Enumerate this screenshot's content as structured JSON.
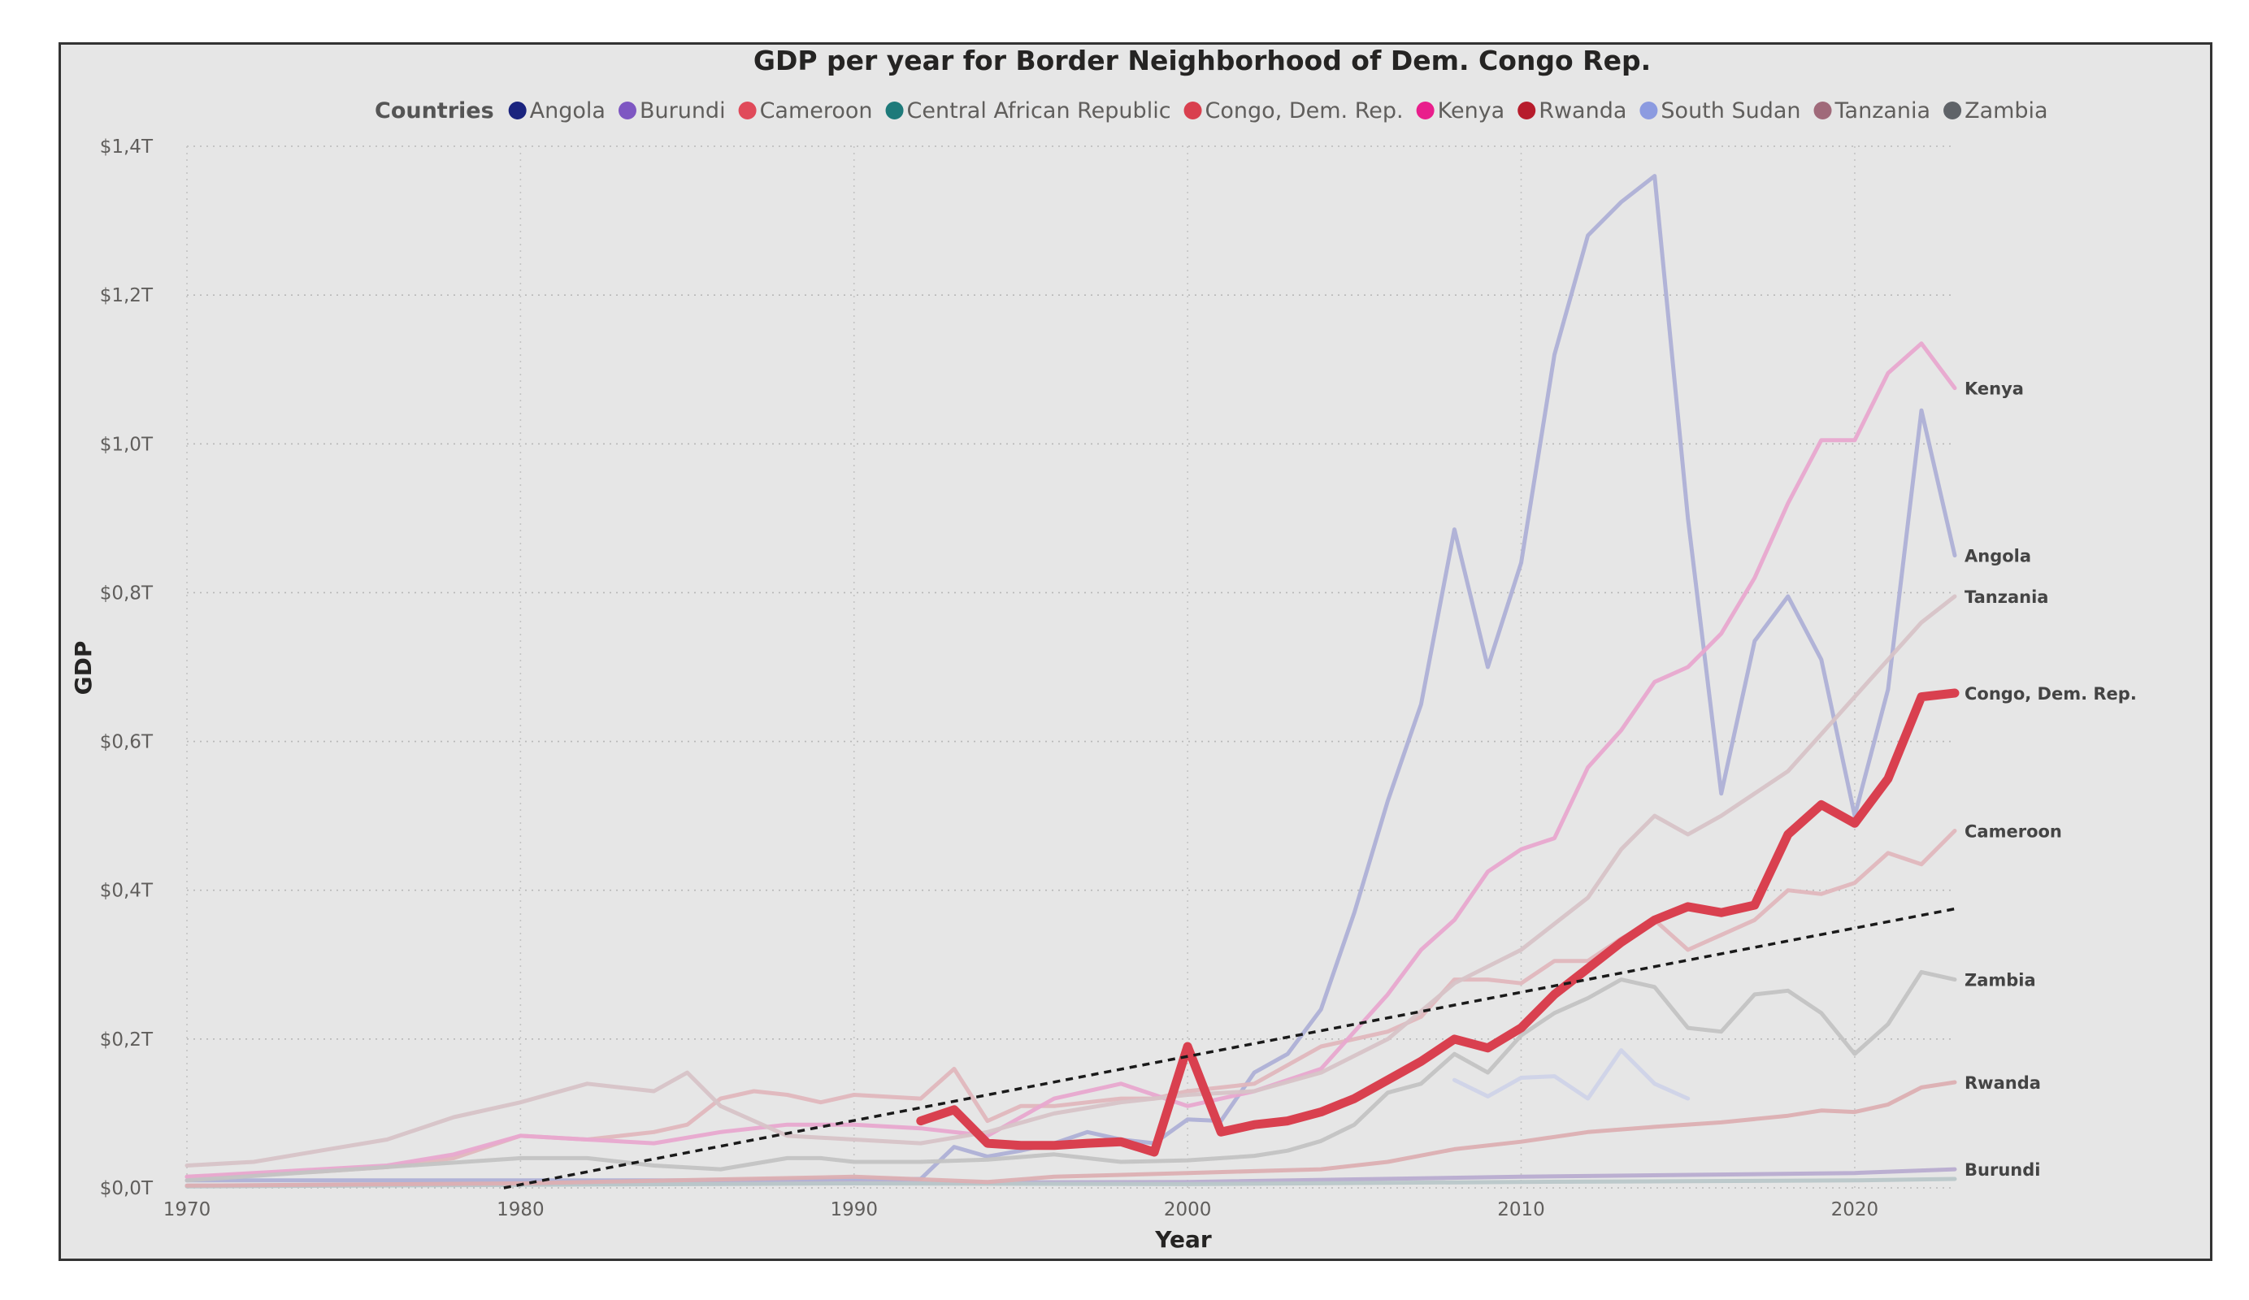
{
  "chart_data": {
    "type": "line",
    "title": "GDP per year for Border Neighborhood of Dem. Congo Rep.",
    "xlabel": "Year",
    "ylabel": "GDP",
    "xlim": [
      1970,
      2023
    ],
    "ylim": [
      0,
      1.4
    ],
    "x_ticks": [
      "1970",
      "1980",
      "1990",
      "2000",
      "2010",
      "2020"
    ],
    "y_ticks": [
      "$0,0T",
      "$0,2T",
      "$0,4T",
      "$0,6T",
      "$0,8T",
      "$1,0T",
      "$1,2T",
      "$1,4T"
    ],
    "grid": true,
    "legend_title": "Countries",
    "legend_position": "top",
    "highlighted_series": "Congo, Dem. Rep.",
    "trend_line": {
      "style": "dashed",
      "points": [
        [
          1979.5,
          0.0
        ],
        [
          2023,
          0.375
        ]
      ]
    },
    "series": [
      {
        "name": "Angola",
        "color": "#1a237e",
        "display_color": "#aeb0d6",
        "end_label": "Angola",
        "x": [
          1970,
          1975,
          1980,
          1985,
          1990,
          1992,
          1993,
          1994,
          1995,
          1996,
          1997,
          1998,
          1999,
          2000,
          2001,
          2002,
          2003,
          2004,
          2005,
          2006,
          2007,
          2008,
          2009,
          2010,
          2011,
          2012,
          2013,
          2014,
          2015,
          2016,
          2017,
          2018,
          2019,
          2020,
          2021,
          2022,
          2023
        ],
        "values": [
          0.01,
          0.01,
          0.01,
          0.01,
          0.012,
          0.012,
          0.055,
          0.042,
          0.05,
          0.06,
          0.075,
          0.065,
          0.06,
          0.092,
          0.09,
          0.155,
          0.18,
          0.24,
          0.37,
          0.52,
          0.65,
          0.885,
          0.7,
          0.84,
          1.12,
          1.28,
          1.325,
          1.36,
          0.9,
          0.53,
          0.735,
          0.795,
          0.71,
          0.5,
          0.67,
          1.045,
          0.85
        ]
      },
      {
        "name": "Burundi",
        "color": "#7e57c2",
        "display_color": "#b8acd0",
        "end_label": "Burundi",
        "x": [
          1970,
          1980,
          1990,
          2000,
          2010,
          2020,
          2023
        ],
        "values": [
          0.003,
          0.005,
          0.007,
          0.008,
          0.015,
          0.02,
          0.025
        ]
      },
      {
        "name": "Cameroon",
        "color": "#e04a5a",
        "display_color": "#e0b7bd",
        "end_label": "Cameroon",
        "x": [
          1970,
          1972,
          1974,
          1976,
          1978,
          1980,
          1982,
          1984,
          1985,
          1986,
          1987,
          1988,
          1989,
          1990,
          1992,
          1993,
          1994,
          1995,
          1996,
          1997,
          1998,
          1999,
          2000,
          2002,
          2004,
          2006,
          2007,
          2008,
          2009,
          2010,
          2011,
          2012,
          2013,
          2014,
          2015,
          2016,
          2017,
          2018,
          2019,
          2020,
          2021,
          2022,
          2023
        ],
        "values": [
          0.015,
          0.018,
          0.022,
          0.028,
          0.04,
          0.07,
          0.065,
          0.075,
          0.085,
          0.12,
          0.13,
          0.125,
          0.115,
          0.125,
          0.12,
          0.16,
          0.09,
          0.11,
          0.11,
          0.115,
          0.12,
          0.12,
          0.13,
          0.14,
          0.19,
          0.21,
          0.23,
          0.28,
          0.28,
          0.275,
          0.305,
          0.305,
          0.335,
          0.36,
          0.32,
          0.34,
          0.36,
          0.4,
          0.395,
          0.41,
          0.45,
          0.435,
          0.48
        ]
      },
      {
        "name": "Central African Republic",
        "color": "#1e7a7a",
        "display_color": "#b9c7c9",
        "end_label": "",
        "x": [
          1970,
          1980,
          1990,
          2000,
          2010,
          2020,
          2023
        ],
        "values": [
          0.002,
          0.004,
          0.006,
          0.005,
          0.008,
          0.01,
          0.012
        ]
      },
      {
        "name": "Congo, Dem. Rep.",
        "color": "#d9404f",
        "display_color": "#d9404f",
        "end_label": "Congo, Dem. Rep.",
        "x": [
          1992,
          1993,
          1994,
          1995,
          1996,
          1997,
          1998,
          1999,
          2000,
          2001,
          2002,
          2003,
          2004,
          2005,
          2006,
          2007,
          2008,
          2009,
          2010,
          2011,
          2012,
          2013,
          2014,
          2015,
          2016,
          2017,
          2018,
          2019,
          2020,
          2021,
          2022,
          2023
        ],
        "values": [
          0.09,
          0.105,
          0.06,
          0.057,
          0.057,
          0.06,
          0.062,
          0.048,
          0.19,
          0.075,
          0.085,
          0.09,
          0.102,
          0.12,
          0.145,
          0.17,
          0.2,
          0.188,
          0.215,
          0.26,
          0.295,
          0.33,
          0.36,
          0.378,
          0.37,
          0.38,
          0.475,
          0.515,
          0.49,
          0.55,
          0.66,
          0.665
        ]
      },
      {
        "name": "Kenya",
        "color": "#e91e8c",
        "display_color": "#e8a8cf",
        "end_label": "Kenya",
        "x": [
          1970,
          1972,
          1974,
          1976,
          1978,
          1980,
          1982,
          1984,
          1986,
          1988,
          1990,
          1992,
          1994,
          1996,
          1998,
          2000,
          2002,
          2004,
          2006,
          2007,
          2008,
          2009,
          2010,
          2011,
          2012,
          2013,
          2014,
          2015,
          2016,
          2017,
          2018,
          2019,
          2020,
          2021,
          2022,
          2023
        ],
        "values": [
          0.015,
          0.02,
          0.025,
          0.03,
          0.045,
          0.07,
          0.065,
          0.06,
          0.075,
          0.085,
          0.085,
          0.08,
          0.07,
          0.12,
          0.14,
          0.11,
          0.13,
          0.16,
          0.26,
          0.32,
          0.36,
          0.425,
          0.455,
          0.47,
          0.565,
          0.615,
          0.68,
          0.7,
          0.745,
          0.82,
          0.92,
          1.005,
          1.005,
          1.095,
          1.135,
          1.075
        ]
      },
      {
        "name": "Rwanda",
        "color": "#b71c2c",
        "display_color": "#dcafb2",
        "end_label": "Rwanda",
        "x": [
          1970,
          1980,
          1990,
          1994,
          1996,
          2000,
          2004,
          2006,
          2008,
          2010,
          2012,
          2014,
          2016,
          2018,
          2019,
          2020,
          2021,
          2022,
          2023
        ],
        "values": [
          0.003,
          0.006,
          0.015,
          0.008,
          0.015,
          0.02,
          0.025,
          0.035,
          0.052,
          0.062,
          0.075,
          0.082,
          0.088,
          0.097,
          0.104,
          0.102,
          0.112,
          0.135,
          0.142
        ]
      },
      {
        "name": "South Sudan",
        "color": "#8c9be0",
        "display_color": "#cfd3e8",
        "end_label": "",
        "x": [
          2008,
          2009,
          2010,
          2011,
          2012,
          2013,
          2014,
          2015
        ],
        "values": [
          0.145,
          0.123,
          0.148,
          0.15,
          0.12,
          0.185,
          0.14,
          0.12
        ]
      },
      {
        "name": "Tanzania",
        "color": "#a06a7a",
        "display_color": "#d7c3c7",
        "end_label": "Tanzania",
        "x": [
          1970,
          1972,
          1974,
          1976,
          1978,
          1980,
          1982,
          1984,
          1985,
          1986,
          1988,
          1990,
          1992,
          1994,
          1996,
          1998,
          2000,
          2002,
          2004,
          2006,
          2008,
          2010,
          2012,
          2013,
          2014,
          2015,
          2016,
          2018,
          2020,
          2022,
          2023
        ],
        "values": [
          0.03,
          0.035,
          0.05,
          0.065,
          0.095,
          0.115,
          0.14,
          0.13,
          0.155,
          0.11,
          0.07,
          0.065,
          0.06,
          0.075,
          0.1,
          0.115,
          0.125,
          0.13,
          0.155,
          0.2,
          0.275,
          0.32,
          0.39,
          0.455,
          0.5,
          0.475,
          0.5,
          0.56,
          0.66,
          0.76,
          0.795
        ]
      },
      {
        "name": "Zambia",
        "color": "#5f6368",
        "display_color": "#c3c3c3",
        "end_label": "Zambia",
        "x": [
          1970,
          1975,
          1980,
          1982,
          1984,
          1986,
          1988,
          1989,
          1990,
          1992,
          1994,
          1996,
          1998,
          2000,
          2002,
          2003,
          2004,
          2005,
          2006,
          2007,
          2008,
          2009,
          2010,
          2011,
          2012,
          2013,
          2014,
          2015,
          2016,
          2017,
          2018,
          2019,
          2020,
          2021,
          2022,
          2023
        ],
        "values": [
          0.01,
          0.025,
          0.04,
          0.04,
          0.03,
          0.025,
          0.04,
          0.04,
          0.035,
          0.035,
          0.038,
          0.045,
          0.035,
          0.037,
          0.043,
          0.05,
          0.063,
          0.085,
          0.128,
          0.14,
          0.18,
          0.155,
          0.205,
          0.235,
          0.255,
          0.28,
          0.27,
          0.215,
          0.21,
          0.26,
          0.265,
          0.235,
          0.18,
          0.22,
          0.29,
          0.28
        ]
      }
    ]
  }
}
